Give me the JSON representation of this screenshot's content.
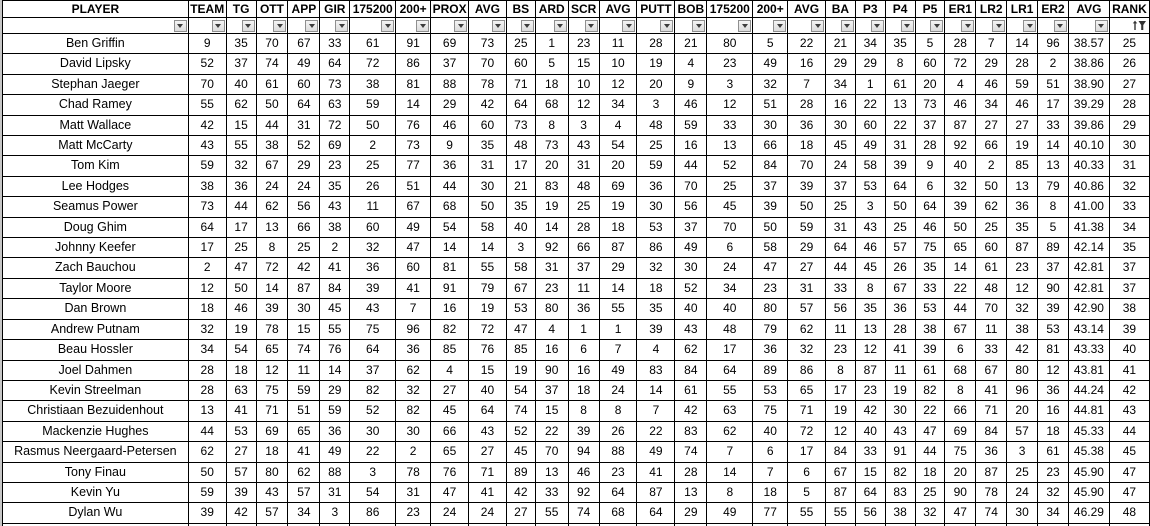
{
  "colors": {
    "good_bg": "#C6EFCE",
    "good_text": "#006100",
    "bad_bg": "#FFC7CE",
    "bad_text": "#9C0006",
    "grid": "#000000"
  },
  "table": {
    "columns": [
      "PLAYER",
      "TEAM",
      "TG",
      "OTT",
      "APP",
      "GIR",
      "175200",
      "200+",
      "PROX",
      "AVG",
      "BS",
      "ARD",
      "SCR",
      "AVG",
      "PUTT",
      "BOB",
      "175200",
      "200+",
      "AVG",
      "BA",
      "P3",
      "P4",
      "P5",
      "ER1",
      "LR2",
      "LR1",
      "ER2",
      "AVG",
      "RANK"
    ],
    "filter_row": {
      "default_icon": "chevron-down",
      "rank_icon": "sort-ascending-filter"
    },
    "rows": [
      {
        "player": "Ben Griffin",
        "cells": [
          "9",
          "35",
          "70",
          "67",
          "33",
          "61",
          "r:91",
          "69",
          "r:73",
          "25",
          "g:1",
          "g:23",
          "g:11",
          "28",
          "g:21",
          "r:80",
          "g:5",
          "g:22",
          "g:21",
          "34",
          "35",
          "g:5",
          "28",
          "g:7",
          "g:14",
          "r:96",
          "38.57",
          "25"
        ]
      },
      {
        "player": "David Lipsky",
        "cells": [
          "52",
          "37",
          "r:74",
          "49",
          "64",
          "72",
          "r:86",
          "37",
          "70",
          "60",
          "g:5",
          "g:15",
          "g:10",
          "g:19",
          "g:4",
          "g:23",
          "49",
          "g:16",
          "29",
          "29",
          "g:8",
          "60",
          "72",
          "29",
          "28",
          "g:2",
          "38.86",
          "26"
        ]
      },
      {
        "player": "Stephan Jaeger",
        "cells": [
          "70",
          "40",
          "61",
          "60",
          "r:73",
          "38",
          "r:81",
          "r:88",
          "r:78",
          "71",
          "g:18",
          "g:10",
          "g:12",
          "g:20",
          "g:9",
          "g:3",
          "32",
          "g:7",
          "34",
          "g:1",
          "61",
          "g:20",
          "g:4",
          "46",
          "59",
          "51",
          "38.90",
          "27"
        ]
      },
      {
        "player": "Chad Ramey",
        "cells": [
          "55",
          "62",
          "50",
          "64",
          "63",
          "59",
          "g:14",
          "29",
          "42",
          "64",
          "68",
          "g:12",
          "34",
          "g:3",
          "46",
          "g:12",
          "51",
          "28",
          "g:16",
          "g:22",
          "g:13",
          "r:73",
          "46",
          "34",
          "46",
          "g:17",
          "39.29",
          "28"
        ]
      },
      {
        "player": "Matt Wallace",
        "cells": [
          "42",
          "g:15",
          "44",
          "31",
          "72",
          "50",
          "r:76",
          "46",
          "60",
          "r:73",
          "g:8",
          "g:3",
          "g:4",
          "48",
          "59",
          "33",
          "30",
          "36",
          "30",
          "60",
          "g:22",
          "37",
          "r:87",
          "27",
          "27",
          "33",
          "39.86",
          "29"
        ]
      },
      {
        "player": "Matt McCarty",
        "cells": [
          "43",
          "55",
          "38",
          "52",
          "69",
          "g:2",
          "r:73",
          "g:9",
          "35",
          "48",
          "r:73",
          "43",
          "54",
          "25",
          "g:16",
          "g:13",
          "66",
          "g:18",
          "45",
          "49",
          "31",
          "28",
          "r:92",
          "66",
          "g:19",
          "g:14",
          "40.10",
          "30"
        ]
      },
      {
        "player": "Tom Kim",
        "cells": [
          "59",
          "32",
          "67",
          "29",
          "g:23",
          "25",
          "r:77",
          "36",
          "31",
          "g:17",
          "g:20",
          "31",
          "g:20",
          "59",
          "44",
          "52",
          "r:84",
          "70",
          "g:24",
          "58",
          "39",
          "g:9",
          "40",
          "g:2",
          "r:85",
          "g:13",
          "40.33",
          "31"
        ]
      },
      {
        "player": "Lee Hodges",
        "cells": [
          "38",
          "36",
          "g:24",
          "g:24",
          "35",
          "26",
          "51",
          "44",
          "30",
          "g:21",
          "r:83",
          "48",
          "69",
          "36",
          "70",
          "25",
          "37",
          "39",
          "37",
          "53",
          "64",
          "g:6",
          "32",
          "50",
          "g:13",
          "r:79",
          "40.86",
          "32"
        ]
      },
      {
        "player": "Seamus Power",
        "cells": [
          "73",
          "44",
          "62",
          "56",
          "43",
          "g:11",
          "67",
          "68",
          "50",
          "35",
          "g:19",
          "25",
          "g:19",
          "30",
          "56",
          "45",
          "39",
          "50",
          "25",
          "g:3",
          "50",
          "64",
          "39",
          "62",
          "36",
          "g:8",
          "41.00",
          "33"
        ]
      },
      {
        "player": "Doug Ghim",
        "cells": [
          "64",
          "g:17",
          "g:13",
          "66",
          "38",
          "60",
          "49",
          "54",
          "58",
          "40",
          "g:14",
          "28",
          "g:18",
          "53",
          "37",
          "70",
          "50",
          "59",
          "31",
          "43",
          "25",
          "46",
          "50",
          "25",
          "35",
          "g:5",
          "41.38",
          "34"
        ]
      },
      {
        "player": "Johnny Keefer",
        "cells": [
          "17",
          "25",
          "g:8",
          "25",
          "g:2",
          "32",
          "47",
          "g:14",
          "g:14",
          "g:3",
          "r:92",
          "66",
          "r:87",
          "r:86",
          "49",
          "g:6",
          "58",
          "29",
          "64",
          "46",
          "57",
          "r:75",
          "65",
          "60",
          "r:87",
          "r:89",
          "42.14",
          "35"
        ]
      },
      {
        "player": "Zach Bauchou",
        "cells": [
          "2",
          "47",
          "72",
          "42",
          "41",
          "36",
          "60",
          "r:81",
          "55",
          "58",
          "31",
          "37",
          "29",
          "32",
          "30",
          "g:24",
          "47",
          "27",
          "44",
          "45",
          "26",
          "35",
          "g:14",
          "61",
          "g:23",
          "37",
          "42.81",
          "37"
        ]
      },
      {
        "player": "Taylor Moore",
        "cells": [
          "12",
          "50",
          "g:14",
          "r:87",
          "r:84",
          "39",
          "41",
          "r:91",
          "r:79",
          "67",
          "g:23",
          "g:11",
          "g:14",
          "g:18",
          "52",
          "34",
          "g:23",
          "31",
          "33",
          "g:8",
          "67",
          "33",
          "g:22",
          "48",
          "g:12",
          "r:90",
          "42.81",
          "37"
        ]
      },
      {
        "player": "Dan Brown",
        "cells": [
          "18",
          "46",
          "39",
          "30",
          "45",
          "43",
          "g:7",
          "g:16",
          "g:19",
          "53",
          "r:80",
          "36",
          "55",
          "35",
          "40",
          "40",
          "r:80",
          "57",
          "56",
          "35",
          "36",
          "53",
          "44",
          "70",
          "32",
          "39",
          "42.90",
          "38"
        ]
      },
      {
        "player": "Andrew Putnam",
        "cells": [
          "32",
          "g:19",
          "r:78",
          "g:15",
          "55",
          "r:75",
          "r:96",
          "r:82",
          "72",
          "47",
          "g:4",
          "g:1",
          "g:1",
          "39",
          "43",
          "48",
          "r:79",
          "62",
          "g:11",
          "g:13",
          "28",
          "38",
          "67",
          "g:11",
          "38",
          "53",
          "43.14",
          "39"
        ]
      },
      {
        "player": "Beau Hossler",
        "cells": [
          "34",
          "54",
          "65",
          "r:74",
          "r:76",
          "64",
          "36",
          "r:85",
          "r:76",
          "r:85",
          "g:16",
          "g:6",
          "g:7",
          "g:4",
          "62",
          "g:17",
          "36",
          "32",
          "g:23",
          "g:12",
          "41",
          "39",
          "g:6",
          "33",
          "42",
          "r:81",
          "43.33",
          "40"
        ]
      },
      {
        "player": "Joel Dahmen",
        "cells": [
          "28",
          "g:18",
          "g:12",
          "g:11",
          "g:14",
          "37",
          "62",
          "g:4",
          "g:15",
          "g:19",
          "r:90",
          "g:16",
          "49",
          "r:83",
          "r:84",
          "64",
          "r:89",
          "r:86",
          "g:8",
          "r:87",
          "g:11",
          "61",
          "68",
          "67",
          "r:80",
          "g:12",
          "43.81",
          "41"
        ]
      },
      {
        "player": "Kevin Streelman",
        "cells": [
          "28",
          "63",
          "r:75",
          "59",
          "29",
          "r:82",
          "32",
          "27",
          "40",
          "54",
          "37",
          "g:18",
          "g:24",
          "g:14",
          "61",
          "55",
          "53",
          "65",
          "g:17",
          "g:23",
          "g:19",
          "r:82",
          "g:8",
          "41",
          "r:96",
          "36",
          "44.24",
          "42"
        ]
      },
      {
        "player": "Christiaan Bezuidenhout",
        "cells": [
          "13",
          "41",
          "71",
          "51",
          "59",
          "52",
          "r:82",
          "45",
          "64",
          "r:74",
          "g:15",
          "g:8",
          "g:8",
          "g:7",
          "42",
          "63",
          "r:75",
          "71",
          "g:19",
          "42",
          "30",
          "g:22",
          "66",
          "71",
          "g:20",
          "g:16",
          "44.81",
          "43"
        ]
      },
      {
        "player": "Mackenzie Hughes",
        "cells": [
          "44",
          "53",
          "69",
          "65",
          "36",
          "30",
          "30",
          "66",
          "43",
          "52",
          "g:22",
          "39",
          "26",
          "g:22",
          "r:83",
          "62",
          "40",
          "72",
          "g:12",
          "40",
          "43",
          "47",
          "69",
          "r:84",
          "57",
          "g:18",
          "45.33",
          "44"
        ]
      },
      {
        "player": "Rasmus Neergaard-Petersen",
        "cells": [
          "62",
          "27",
          "g:18",
          "41",
          "49",
          "g:22",
          "g:2",
          "65",
          "27",
          "45",
          "70",
          "r:94",
          "r:88",
          "49",
          "r:74",
          "g:7",
          "g:6",
          "g:17",
          "r:84",
          "33",
          "r:91",
          "44",
          "r:75",
          "36",
          "g:3",
          "61",
          "45.38",
          "45"
        ]
      },
      {
        "player": "Tony Finau",
        "cells": [
          "50",
          "57",
          "r:80",
          "62",
          "r:88",
          "g:3",
          "r:78",
          "r:76",
          "71",
          "r:89",
          "g:13",
          "46",
          "g:23",
          "41",
          "28",
          "g:14",
          "g:7",
          "g:6",
          "67",
          "g:15",
          "r:82",
          "g:18",
          "g:20",
          "r:87",
          "25",
          "g:23",
          "45.90",
          "47"
        ]
      },
      {
        "player": "Kevin Yu",
        "cells": [
          "59",
          "39",
          "43",
          "57",
          "31",
          "54",
          "31",
          "47",
          "41",
          "42",
          "33",
          "r:92",
          "64",
          "r:87",
          "g:13",
          "g:8",
          "g:18",
          "g:5",
          "r:87",
          "64",
          "r:83",
          "25",
          "r:90",
          "r:78",
          "g:24",
          "32",
          "45.90",
          "47"
        ]
      },
      {
        "player": "Dylan Wu",
        "cells": [
          "39",
          "42",
          "57",
          "34",
          "g:3",
          "r:86",
          "g:23",
          "g:24",
          "g:24",
          "27",
          "55",
          "r:74",
          "68",
          "64",
          "29",
          "49",
          "r:77",
          "55",
          "55",
          "56",
          "38",
          "32",
          "47",
          "r:74",
          "30",
          "34",
          "46.29",
          "48"
        ]
      }
    ],
    "partial_row_colors": {
      "2": "r",
      "7": "g",
      "8": "r",
      "9": "r",
      "11": "g",
      "12": "r",
      "13": "g",
      "14": "g",
      "17": "r",
      "18": "r",
      "27": "r",
      "28": "g"
    }
  }
}
